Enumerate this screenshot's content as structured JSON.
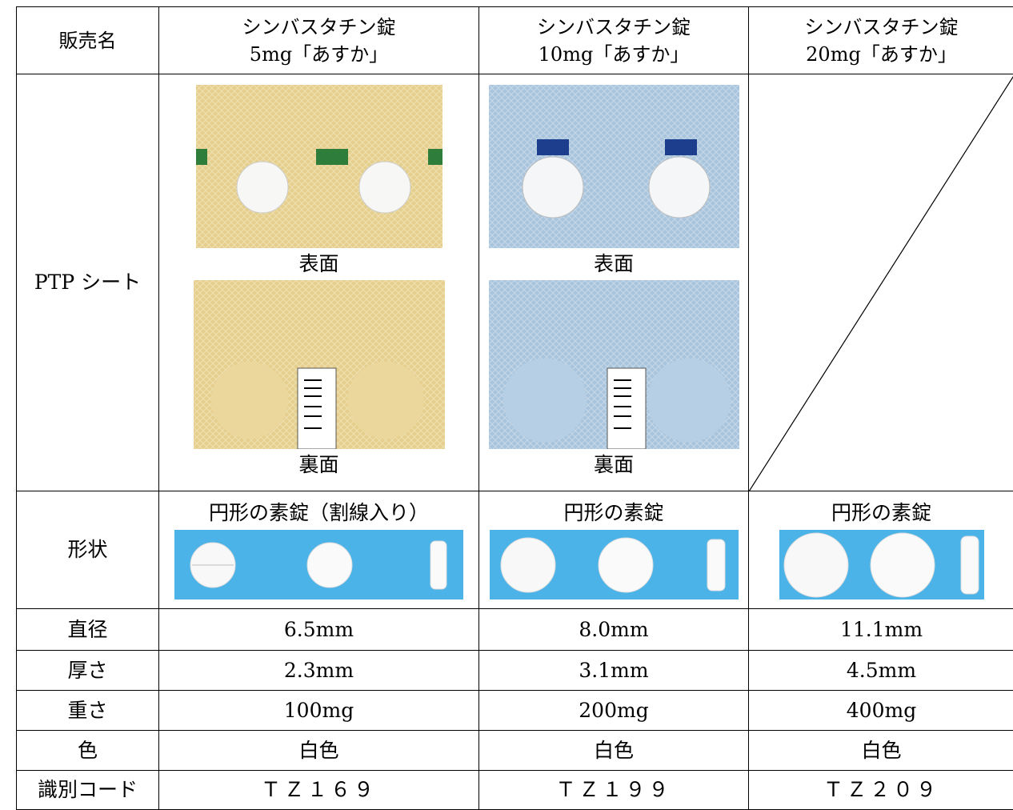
{
  "table": {
    "header_label": "販売名",
    "row_labels": [
      "PTP シート",
      "形状",
      "直径",
      "厚さ",
      "重さ",
      "色",
      "識別コード"
    ],
    "products": [
      {
        "name": "シンバスタチン錠",
        "strength": "5mg「あすか」",
        "ptp_front": "表面",
        "ptp_back": "裏面",
        "shape": "円形の素錠（割線入り）",
        "diameter": "6.5mm",
        "thickness": "2.3mm",
        "weight": "100mg",
        "color": "白色",
        "code": "ＴＺ１６９"
      },
      {
        "name": "シンバスタチン錠",
        "strength": "10mg「あすか」",
        "ptp_front": "表面",
        "ptp_back": "裏面",
        "shape": "円形の素錠",
        "diameter": "8.0mm",
        "thickness": "3.1mm",
        "weight": "200mg",
        "color": "白色",
        "code": "ＴＺ１９９"
      },
      {
        "name": "シンバスタチン錠",
        "strength": "20mg「あすか」",
        "shape": "円形の素錠",
        "diameter": "11.1mm",
        "thickness": "4.5mm",
        "weight": "400mg",
        "color": "白色",
        "code": "ＴＺ２０９"
      }
    ]
  }
}
